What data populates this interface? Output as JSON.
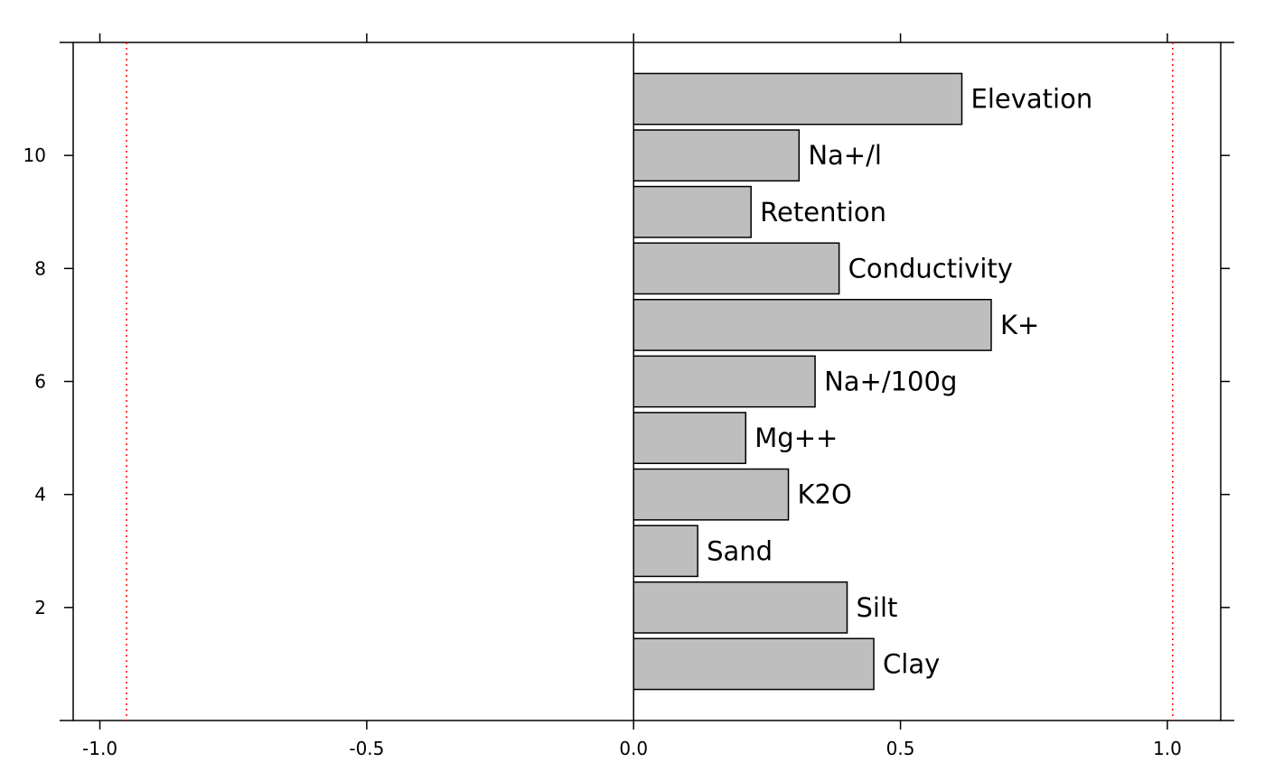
{
  "chart_data": {
    "type": "bar",
    "orientation": "horizontal",
    "title": "",
    "xlabel": "",
    "ylabel": "",
    "xlim": [
      -1.05,
      1.1
    ],
    "ylim": [
      0,
      12
    ],
    "grid": false,
    "bar_color": "#bebebe",
    "bar_border_color": "#000000",
    "reference_line_color": "#ff0000",
    "reference_lines": [
      -0.95,
      1.01
    ],
    "zero_line": 0,
    "x_ticks": [
      {
        "value": -1.0,
        "label": "-1.0"
      },
      {
        "value": -0.5,
        "label": "-0.5"
      },
      {
        "value": 0.0,
        "label": "0.0"
      },
      {
        "value": 0.5,
        "label": "0.5"
      },
      {
        "value": 1.0,
        "label": "1.0"
      }
    ],
    "y_ticks": [
      {
        "value": 2,
        "label": "2"
      },
      {
        "value": 4,
        "label": "4"
      },
      {
        "value": 6,
        "label": "6"
      },
      {
        "value": 8,
        "label": "8"
      },
      {
        "value": 10,
        "label": "10"
      }
    ],
    "bars": [
      {
        "y": 1,
        "label": "Clay",
        "value": 0.45
      },
      {
        "y": 2,
        "label": "Silt",
        "value": 0.4
      },
      {
        "y": 3,
        "label": "Sand",
        "value": 0.12
      },
      {
        "y": 4,
        "label": "K2O",
        "value": 0.29
      },
      {
        "y": 5,
        "label": "Mg++",
        "value": 0.21
      },
      {
        "y": 6,
        "label": "Na+/100g",
        "value": 0.34
      },
      {
        "y": 7,
        "label": "K+",
        "value": 0.67
      },
      {
        "y": 8,
        "label": "Conductivity",
        "value": 0.385
      },
      {
        "y": 9,
        "label": "Retention",
        "value": 0.22
      },
      {
        "y": 10,
        "label": "Na+/l",
        "value": 0.31
      },
      {
        "y": 11,
        "label": "Elevation",
        "value": 0.615
      }
    ]
  }
}
